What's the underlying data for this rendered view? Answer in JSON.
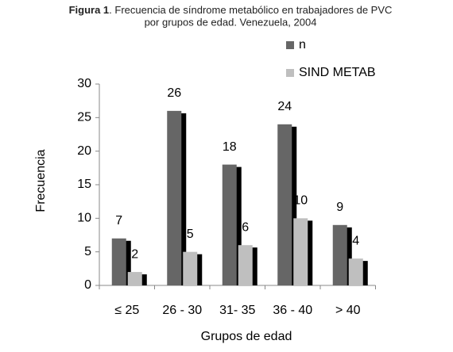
{
  "chart_data": {
    "type": "bar",
    "title_bold": "Figura 1",
    "title": [
      ". Frecuencia  de  síndrome  metabólico  en trabajadores de PVC",
      "por grupos de edad. Venezuela, 2004"
    ],
    "x_label": "Grupos de edad",
    "y_label": "Frecuencia",
    "categories": [
      "≤  25",
      "26 - 30",
      "31- 35",
      "36 - 40",
      "> 40"
    ],
    "series": [
      {
        "name": "n",
        "color": "#666666",
        "values": [
          7,
          26,
          18,
          24,
          9
        ]
      },
      {
        "name": "SIND METAB",
        "color": "#bfbfbf",
        "values": [
          2,
          5,
          6,
          10,
          4
        ]
      }
    ],
    "ylim": [
      0,
      30
    ],
    "yticks": [
      0,
      5,
      10,
      15,
      20,
      25,
      30
    ],
    "grid": false,
    "legend": "top-right"
  }
}
